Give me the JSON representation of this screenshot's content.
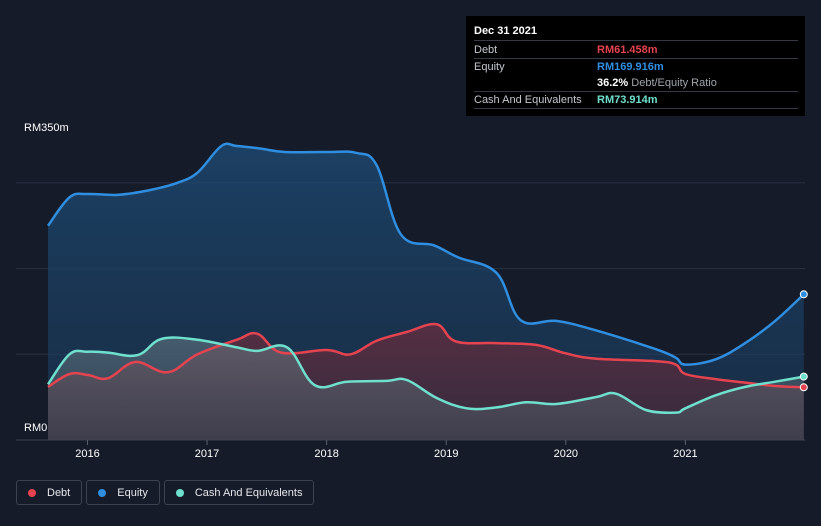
{
  "tooltip": {
    "date": "Dec 31 2021",
    "debt_label": "Debt",
    "debt_value": "RM61.458m",
    "equity_label": "Equity",
    "equity_value": "RM169.916m",
    "ratio_value": "36.2%",
    "ratio_label": "Debt/Equity Ratio",
    "cash_label": "Cash And Equivalents",
    "cash_value": "RM73.914m"
  },
  "legend": [
    {
      "label": "Debt",
      "color": "#e5434f"
    },
    {
      "label": "Equity",
      "color": "#2f8ee0"
    },
    {
      "label": "Cash And Equivalents",
      "color": "#6fe0cd"
    }
  ],
  "chart_data": {
    "type": "area",
    "title": "",
    "ylabel_top": "RM350m",
    "ylabel_bottom": "RM0",
    "ylim": [
      0,
      350
    ],
    "xlim": [
      2015.67,
      2022.0
    ],
    "xticks": [
      "2016",
      "2017",
      "2018",
      "2019",
      "2020",
      "2021"
    ],
    "series": [
      {
        "name": "Equity",
        "color": "#2f8ee0",
        "points": [
          [
            2015.67,
            250
          ],
          [
            2015.85,
            283
          ],
          [
            2016.0,
            287
          ],
          [
            2016.25,
            286
          ],
          [
            2016.5,
            291
          ],
          [
            2016.75,
            300
          ],
          [
            2016.92,
            312
          ],
          [
            2017.12,
            343
          ],
          [
            2017.25,
            343
          ],
          [
            2017.45,
            340
          ],
          [
            2017.65,
            336
          ],
          [
            2018.0,
            336
          ],
          [
            2018.25,
            335
          ],
          [
            2018.42,
            320
          ],
          [
            2018.62,
            240
          ],
          [
            2018.9,
            227
          ],
          [
            2019.1,
            213
          ],
          [
            2019.42,
            195
          ],
          [
            2019.62,
            140
          ],
          [
            2019.92,
            139
          ],
          [
            2020.25,
            128
          ],
          [
            2020.75,
            106
          ],
          [
            2020.92,
            96
          ],
          [
            2021.0,
            88
          ],
          [
            2021.25,
            94
          ],
          [
            2021.5,
            113
          ],
          [
            2021.75,
            139
          ],
          [
            2021.99,
            170
          ]
        ]
      },
      {
        "name": "Debt",
        "color": "#e5434f",
        "points": [
          [
            2015.67,
            62
          ],
          [
            2015.85,
            77
          ],
          [
            2016.0,
            76
          ],
          [
            2016.17,
            72
          ],
          [
            2016.4,
            91
          ],
          [
            2016.67,
            79
          ],
          [
            2016.92,
            100
          ],
          [
            2017.25,
            117
          ],
          [
            2017.42,
            124
          ],
          [
            2017.62,
            102
          ],
          [
            2018.0,
            105
          ],
          [
            2018.2,
            100
          ],
          [
            2018.42,
            116
          ],
          [
            2018.67,
            126
          ],
          [
            2018.92,
            135
          ],
          [
            2019.08,
            115
          ],
          [
            2019.42,
            113
          ],
          [
            2019.75,
            111
          ],
          [
            2020.0,
            101
          ],
          [
            2020.25,
            95
          ],
          [
            2020.75,
            92
          ],
          [
            2020.92,
            88
          ],
          [
            2021.0,
            77
          ],
          [
            2021.25,
            71
          ],
          [
            2021.5,
            67
          ],
          [
            2021.75,
            63
          ],
          [
            2021.99,
            61.5
          ]
        ]
      },
      {
        "name": "Cash And Equivalents",
        "color": "#6fe0cd",
        "points": [
          [
            2015.67,
            65
          ],
          [
            2015.85,
            100
          ],
          [
            2016.0,
            103
          ],
          [
            2016.17,
            102
          ],
          [
            2016.42,
            99
          ],
          [
            2016.62,
            118
          ],
          [
            2016.92,
            117
          ],
          [
            2017.25,
            108
          ],
          [
            2017.42,
            104
          ],
          [
            2017.67,
            108
          ],
          [
            2017.9,
            64
          ],
          [
            2018.17,
            68
          ],
          [
            2018.5,
            69
          ],
          [
            2018.67,
            70
          ],
          [
            2018.92,
            49
          ],
          [
            2019.17,
            37
          ],
          [
            2019.42,
            38
          ],
          [
            2019.67,
            44
          ],
          [
            2019.92,
            42
          ],
          [
            2020.25,
            50
          ],
          [
            2020.42,
            54
          ],
          [
            2020.67,
            35
          ],
          [
            2020.92,
            32
          ],
          [
            2021.0,
            37
          ],
          [
            2021.25,
            52
          ],
          [
            2021.5,
            62
          ],
          [
            2021.75,
            68
          ],
          [
            2021.99,
            74
          ]
        ]
      }
    ]
  }
}
